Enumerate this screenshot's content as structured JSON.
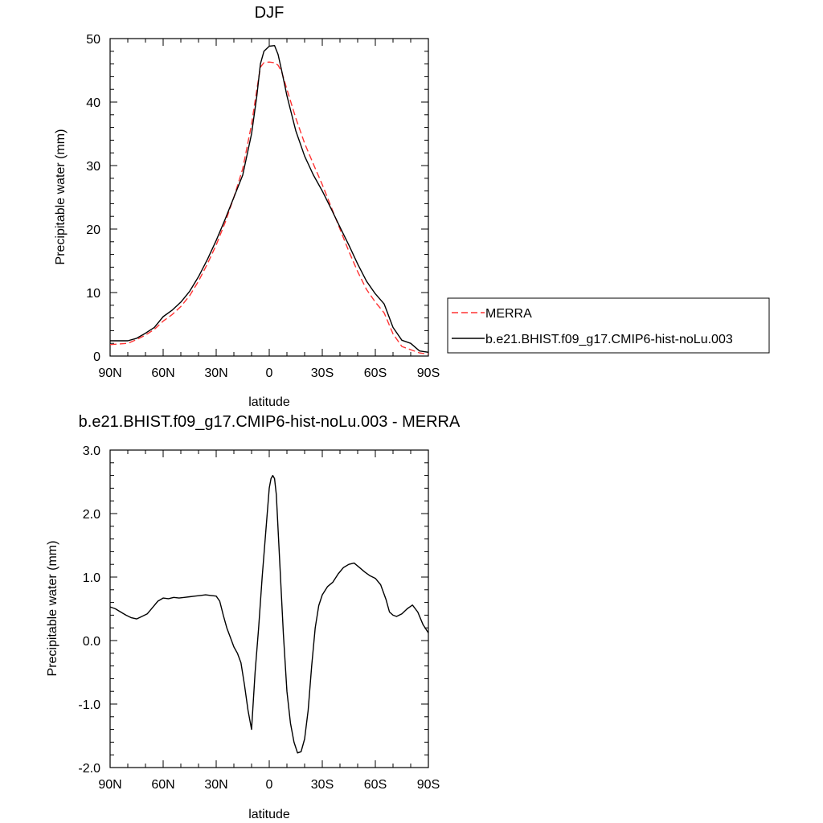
{
  "chart_data": [
    {
      "type": "line",
      "title": "DJF",
      "xlabel": "latitude",
      "ylabel": "Precipitable water (mm)",
      "xlim": [
        -90,
        90
      ],
      "ylim": [
        0,
        50
      ],
      "x_ticks": [
        {
          "value": -90,
          "label": "90N"
        },
        {
          "value": -60,
          "label": "60N"
        },
        {
          "value": -30,
          "label": "30N"
        },
        {
          "value": 0,
          "label": "0"
        },
        {
          "value": 30,
          "label": "30S"
        },
        {
          "value": 60,
          "label": "60S"
        },
        {
          "value": 90,
          "label": "90S"
        }
      ],
      "y_ticks": [
        {
          "value": 0,
          "label": "0"
        },
        {
          "value": 10,
          "label": "10"
        },
        {
          "value": 20,
          "label": "20"
        },
        {
          "value": 30,
          "label": "30"
        },
        {
          "value": 40,
          "label": "40"
        },
        {
          "value": 50,
          "label": "50"
        }
      ],
      "legend_position": "right",
      "series": [
        {
          "name": "MERRA",
          "color": "#ff3333",
          "dash": "dashed",
          "x": [
            -90,
            -80,
            -75,
            -70,
            -65,
            -60,
            -55,
            -50,
            -45,
            -40,
            -35,
            -30,
            -25,
            -20,
            -15,
            -10,
            -7,
            -5,
            -3,
            0,
            3,
            5,
            7,
            10,
            15,
            20,
            25,
            30,
            35,
            40,
            45,
            50,
            55,
            60,
            65,
            70,
            75,
            80,
            85,
            90
          ],
          "y": [
            1.8,
            2.0,
            2.6,
            3.3,
            4.2,
            5.5,
            6.5,
            7.8,
            9.5,
            11.8,
            14.5,
            17.5,
            21.0,
            25.0,
            29.5,
            36.5,
            42.0,
            45.5,
            46.2,
            46.3,
            46.2,
            45.8,
            44.8,
            42.0,
            37.5,
            33.5,
            30.2,
            27.0,
            23.5,
            20.0,
            16.5,
            13.3,
            10.5,
            8.5,
            6.8,
            3.5,
            1.5,
            1.0,
            0.5,
            0.3
          ]
        },
        {
          "name": "b.e21.BHIST.f09_g17.CMIP6-hist-noLu.003",
          "color": "#000000",
          "dash": "solid",
          "x": [
            -90,
            -80,
            -75,
            -70,
            -65,
            -60,
            -55,
            -50,
            -45,
            -40,
            -35,
            -30,
            -25,
            -20,
            -15,
            -10,
            -7,
            -5,
            -3,
            0,
            3,
            5,
            7,
            10,
            15,
            20,
            25,
            30,
            35,
            40,
            45,
            50,
            55,
            60,
            65,
            70,
            75,
            80,
            85,
            90
          ],
          "y": [
            2.4,
            2.4,
            2.8,
            3.6,
            4.5,
            6.2,
            7.2,
            8.5,
            10.2,
            12.5,
            15.2,
            18.2,
            21.5,
            25.0,
            28.5,
            35.0,
            41.0,
            46.0,
            48.0,
            48.8,
            48.9,
            47.5,
            45.0,
            41.0,
            35.5,
            31.5,
            28.5,
            26.0,
            23.2,
            20.3,
            17.5,
            14.5,
            11.8,
            9.8,
            8.2,
            4.5,
            2.5,
            2.0,
            0.8,
            0.6
          ]
        }
      ]
    },
    {
      "type": "line",
      "title": "b.e21.BHIST.f09_g17.CMIP6-hist-noLu.003 - MERRA",
      "xlabel": "latitude",
      "ylabel": "Precipitable water (mm)",
      "xlim": [
        -90,
        90
      ],
      "ylim": [
        -2,
        3
      ],
      "x_ticks": [
        {
          "value": -90,
          "label": "90N"
        },
        {
          "value": -60,
          "label": "60N"
        },
        {
          "value": -30,
          "label": "30N"
        },
        {
          "value": 0,
          "label": "0"
        },
        {
          "value": 30,
          "label": "30S"
        },
        {
          "value": 60,
          "label": "60S"
        },
        {
          "value": 90,
          "label": "90S"
        }
      ],
      "y_ticks": [
        {
          "value": -2,
          "label": "-2.0"
        },
        {
          "value": -1,
          "label": "-1.0"
        },
        {
          "value": 0,
          "label": "0.0"
        },
        {
          "value": 1,
          "label": "1.0"
        },
        {
          "value": 2,
          "label": "2.0"
        },
        {
          "value": 3,
          "label": "3.0"
        }
      ],
      "series": [
        {
          "color": "#000000",
          "dash": "solid",
          "x": [
            -90,
            -87,
            -84,
            -81,
            -78,
            -75,
            -72,
            -69,
            -66,
            -63,
            -60,
            -57,
            -54,
            -51,
            -48,
            -45,
            -42,
            -39,
            -36,
            -33,
            -30,
            -28,
            -26,
            -24,
            -22,
            -20,
            -18,
            -16,
            -14,
            -12,
            -10,
            -8,
            -6,
            -4,
            -2,
            0,
            1,
            2,
            3,
            4,
            6,
            8,
            10,
            12,
            14,
            16,
            18,
            20,
            22,
            24,
            26,
            28,
            30,
            33,
            36,
            39,
            42,
            45,
            48,
            51,
            54,
            57,
            60,
            63,
            66,
            68,
            70,
            72,
            75,
            78,
            81,
            84,
            87,
            90
          ],
          "y": [
            0.53,
            0.5,
            0.45,
            0.4,
            0.36,
            0.34,
            0.38,
            0.42,
            0.52,
            0.62,
            0.67,
            0.66,
            0.68,
            0.67,
            0.68,
            0.69,
            0.7,
            0.71,
            0.72,
            0.71,
            0.7,
            0.62,
            0.4,
            0.2,
            0.05,
            -0.1,
            -0.2,
            -0.35,
            -0.7,
            -1.1,
            -1.4,
            -0.5,
            0.2,
            1.0,
            1.7,
            2.4,
            2.55,
            2.6,
            2.55,
            2.3,
            1.2,
            0.1,
            -0.8,
            -1.3,
            -1.6,
            -1.77,
            -1.75,
            -1.55,
            -1.1,
            -0.4,
            0.2,
            0.55,
            0.72,
            0.85,
            0.92,
            1.05,
            1.15,
            1.2,
            1.22,
            1.15,
            1.08,
            1.02,
            0.98,
            0.88,
            0.65,
            0.45,
            0.4,
            0.38,
            0.42,
            0.5,
            0.56,
            0.45,
            0.25,
            0.12
          ]
        }
      ]
    }
  ]
}
